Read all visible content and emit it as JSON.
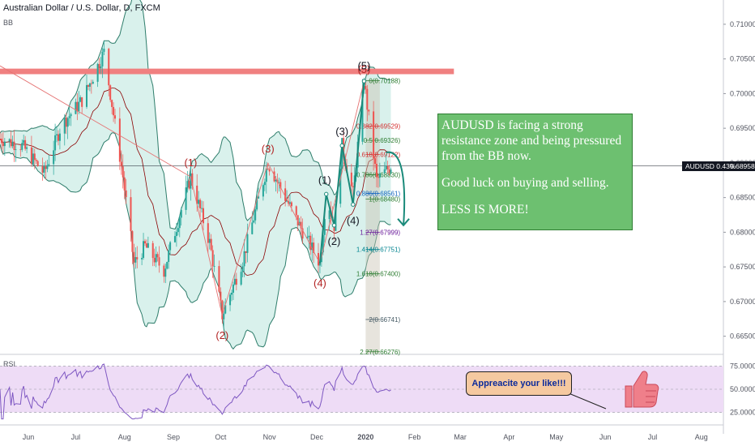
{
  "symbol": {
    "title": "Australian Dollar / U.S. Dollar, D, FXCM",
    "indicator_bb": "BB"
  },
  "rsi_label": "RSI",
  "last_price": {
    "tag": "AUDUSD 0.43%",
    "value": "0.68958"
  },
  "colors": {
    "up": "#26a69a",
    "down": "#ef5350",
    "bb_fill": "#cfeee7",
    "bb_line": "#2e7d6b",
    "basis": "#8b0000",
    "resistance": "#f08080",
    "rsi_band": "#eedcf6",
    "rsi_line": "#7e57c2",
    "note_bg": "#6dc070",
    "bubble_bg": "#f5c9a0",
    "bubble_text": "#0b2a9b",
    "thumb": "#ef7f8a"
  },
  "note": {
    "line1": "AUDUSD is facing a strong resistance zone and being pressured from the BB now.",
    "line2": "Good luck on buying and selling.",
    "line3": "LESS IS MORE!"
  },
  "bubble_text": "Appreacite your like!!!",
  "waves_red": [
    "(1)",
    "(2)",
    "(3)",
    "(4)",
    "(5)"
  ],
  "waves_black": [
    "(1)",
    "(2)",
    "(3)",
    "(4)",
    "(5)"
  ],
  "fib_levels": [
    {
      "label": "0(0.70188)",
      "color": "#2e7d32"
    },
    {
      "label": "0.382(0.69529)",
      "color": "#d32f2f"
    },
    {
      "label": "0.5(0.69326)",
      "color": "#2e7d32"
    },
    {
      "label": "0.618(0.69122)",
      "color": "#d32f2f"
    },
    {
      "label": "0.786(0.68830)",
      "color": "#2e7d32"
    },
    {
      "label": "0.886(0.68561)",
      "color": "#1565c0"
    },
    {
      "label": "1(0.68480)",
      "color": "#2e7d32"
    },
    {
      "label": "1.27(0.67999)",
      "color": "#6a1b9a"
    },
    {
      "label": "1.414(0.67751)",
      "color": "#00838f"
    },
    {
      "label": "1.618(0.67400)",
      "color": "#2e7d32"
    },
    {
      "label": "2(0.66741)",
      "color": "#455a64"
    },
    {
      "label": "2.27(0.66276)",
      "color": "#2e7d32"
    }
  ],
  "chart_data": {
    "type": "candlestick",
    "title": "Australian Dollar / U.S. Dollar, D, FXCM",
    "price_axis": {
      "ticks": [
        "0.71000",
        "0.70500",
        "0.70000",
        "0.69500",
        "0.69000",
        "0.68500",
        "0.68000",
        "0.67500",
        "0.67000",
        "0.66500"
      ],
      "range": [
        0.6625,
        0.7135
      ]
    },
    "time_axis": {
      "ticks": [
        "Jun",
        "Jul",
        "Aug",
        "Sep",
        "Oct",
        "Nov",
        "Dec",
        "2020",
        "Feb",
        "Mar",
        "Apr",
        "May",
        "Jun",
        "Jul",
        "Aug"
      ]
    },
    "resistance_zone": [
      0.7028,
      0.7036
    ],
    "last_price": 0.68958,
    "price_path": [
      {
        "date": "2019-05-14",
        "price": 0.6935
      },
      {
        "date": "2019-05-28",
        "price": 0.6925
      },
      {
        "date": "2019-06-11",
        "price": 0.6885
      },
      {
        "date": "2019-06-22",
        "price": 0.6955
      },
      {
        "date": "2019-07-05",
        "price": 0.699
      },
      {
        "date": "2019-07-19",
        "price": 0.706
      },
      {
        "date": "2019-07-31",
        "price": 0.688
      },
      {
        "date": "2019-08-07",
        "price": 0.6755
      },
      {
        "date": "2019-08-14",
        "price": 0.678
      },
      {
        "date": "2019-08-26",
        "price": 0.6745
      },
      {
        "date": "2019-09-12",
        "price": 0.688
      },
      {
        "date": "2019-09-24",
        "price": 0.6785
      },
      {
        "date": "2019-10-02",
        "price": 0.668
      },
      {
        "date": "2019-10-15",
        "price": 0.676
      },
      {
        "date": "2019-10-31",
        "price": 0.69
      },
      {
        "date": "2019-11-20",
        "price": 0.681
      },
      {
        "date": "2019-12-03",
        "price": 0.6755
      },
      {
        "date": "2019-12-07",
        "price": 0.6855
      },
      {
        "date": "2019-12-12",
        "price": 0.681
      },
      {
        "date": "2019-12-17",
        "price": 0.6925
      },
      {
        "date": "2019-12-24",
        "price": 0.6855
      },
      {
        "date": "2019-12-31",
        "price": 0.7018
      },
      {
        "date": "2020-01-08",
        "price": 0.6875
      },
      {
        "date": "2020-01-17",
        "price": 0.6896
      }
    ],
    "rsi": {
      "ticks": [
        "75.0000",
        "50.0000",
        "25.0000"
      ],
      "upper": 75,
      "lower": 25,
      "range": [
        15,
        85
      ]
    }
  }
}
